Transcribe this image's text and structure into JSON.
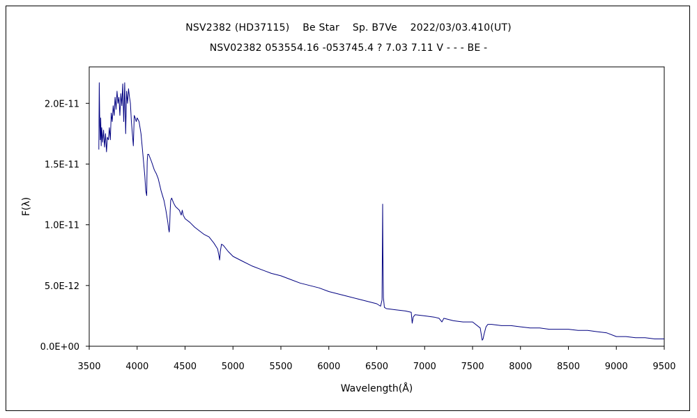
{
  "chart_data": {
    "type": "line",
    "title": "NSV2382 (HD37115)　 Be Star　 Sp. B7Ve　 2022/03/03.410(UT)",
    "subtitle": "NSV02382 053554.16 -053745.4 ? 7.03 7.11 V - - - BE -",
    "xlabel": "Wavelength(Å)",
    "ylabel": "F(λ)",
    "xlim": [
      3500,
      9500
    ],
    "ylim": [
      0,
      2.3e-11
    ],
    "xticks": [
      "3500",
      "4000",
      "4500",
      "5000",
      "5500",
      "6000",
      "6500",
      "7000",
      "7500",
      "8000",
      "8500",
      "9000",
      "9500"
    ],
    "yticks": [
      "0.0E+00",
      "5.0E-12",
      "1.0E-11",
      "1.5E-11",
      "2.0E-11"
    ],
    "ytick_values": [
      0,
      5e-12,
      1e-11,
      1.5e-11,
      2e-11
    ],
    "grid": false,
    "legend": "none",
    "series": [
      {
        "color": "#000080",
        "x": [
          3600,
          3605,
          3610,
          3615,
          3620,
          3625,
          3630,
          3640,
          3650,
          3660,
          3670,
          3680,
          3690,
          3700,
          3710,
          3720,
          3730,
          3740,
          3750,
          3760,
          3770,
          3780,
          3790,
          3800,
          3810,
          3820,
          3830,
          3840,
          3850,
          3860,
          3870,
          3880,
          3890,
          3900,
          3910,
          3920,
          3930,
          3940,
          3950,
          3960,
          3970,
          3980,
          3990,
          4000,
          4020,
          4040,
          4060,
          4080,
          4090,
          4100,
          4102,
          4105,
          4110,
          4120,
          4150,
          4180,
          4200,
          4220,
          4250,
          4280,
          4300,
          4320,
          4330,
          4335,
          4340,
          4345,
          4350,
          4360,
          4380,
          4400,
          4440,
          4460,
          4471,
          4480,
          4500,
          4550,
          4600,
          4650,
          4700,
          4750,
          4800,
          4840,
          4855,
          4861,
          4868,
          4880,
          4900,
          4950,
          5000,
          5100,
          5200,
          5300,
          5400,
          5500,
          5600,
          5700,
          5800,
          5900,
          6000,
          6100,
          6200,
          6300,
          6400,
          6500,
          6540,
          6555,
          6562,
          6565,
          6570,
          6580,
          6600,
          6700,
          6800,
          6860,
          6870,
          6880,
          6900,
          7000,
          7100,
          7150,
          7180,
          7200,
          7300,
          7400,
          7500,
          7580,
          7600,
          7610,
          7620,
          7640,
          7660,
          7700,
          7800,
          7900,
          8000,
          8100,
          8200,
          8300,
          8400,
          8500,
          8600,
          8700,
          8800,
          8900,
          9000,
          9100,
          9200,
          9300,
          9400,
          9500
        ],
        "y": [
          1.62e-11,
          2.17e-11,
          1.85e-11,
          1.7e-11,
          1.88e-11,
          1.65e-11,
          1.8e-11,
          1.68e-11,
          1.78e-11,
          1.64e-11,
          1.75e-11,
          1.6e-11,
          1.72e-11,
          1.7e-11,
          1.8e-11,
          1.7e-11,
          1.92e-11,
          1.85e-11,
          1.98e-11,
          1.9e-11,
          2.05e-11,
          1.95e-11,
          2.1e-11,
          2e-11,
          2.05e-11,
          1.9e-11,
          2.08e-11,
          1.98e-11,
          2.16e-11,
          1.85e-11,
          2.17e-11,
          1.75e-11,
          2.1e-11,
          2e-11,
          2.12e-11,
          2.05e-11,
          2e-11,
          1.85e-11,
          1.75e-11,
          1.65e-11,
          1.9e-11,
          1.88e-11,
          1.85e-11,
          1.88e-11,
          1.85e-11,
          1.75e-11,
          1.58e-11,
          1.4e-11,
          1.28e-11,
          1.24e-11,
          1.38e-11,
          1.52e-11,
          1.58e-11,
          1.58e-11,
          1.52e-11,
          1.45e-11,
          1.42e-11,
          1.38e-11,
          1.28e-11,
          1.2e-11,
          1.12e-11,
          1.02e-11,
          9.6e-12,
          9.4e-12,
          1e-11,
          1.12e-11,
          1.2e-11,
          1.22e-11,
          1.18e-11,
          1.15e-11,
          1.12e-11,
          1.08e-11,
          1.12e-11,
          1.08e-11,
          1.05e-11,
          1.02e-11,
          9.8e-12,
          9.5e-12,
          9.2e-12,
          9e-12,
          8.5e-12,
          8e-12,
          7.4e-12,
          7.1e-12,
          7.8e-12,
          8.4e-12,
          8.3e-12,
          7.8e-12,
          7.4e-12,
          7e-12,
          6.6e-12,
          6.3e-12,
          6e-12,
          5.8e-12,
          5.5e-12,
          5.2e-12,
          5e-12,
          4.8e-12,
          4.5e-12,
          4.3e-12,
          4.1e-12,
          3.9e-12,
          3.7e-12,
          3.5e-12,
          3.3e-12,
          3.8e-12,
          1.17e-11,
          7.5e-12,
          4e-12,
          3.2e-12,
          3.1e-12,
          3e-12,
          2.9e-12,
          2.8e-12,
          1.9e-12,
          2.4e-12,
          2.6e-12,
          2.5e-12,
          2.4e-12,
          2.3e-12,
          2e-12,
          2.3e-12,
          2.1e-12,
          2e-12,
          2e-12,
          1.5e-12,
          5e-13,
          6e-13,
          1e-12,
          1.6e-12,
          1.8e-12,
          1.8e-12,
          1.7e-12,
          1.7e-12,
          1.6e-12,
          1.5e-12,
          1.5e-12,
          1.4e-12,
          1.4e-12,
          1.4e-12,
          1.3e-12,
          1.3e-12,
          1.2e-12,
          1.1e-12,
          8e-13,
          8e-13,
          7e-13,
          7e-13,
          6e-13,
          6e-13
        ]
      }
    ]
  }
}
